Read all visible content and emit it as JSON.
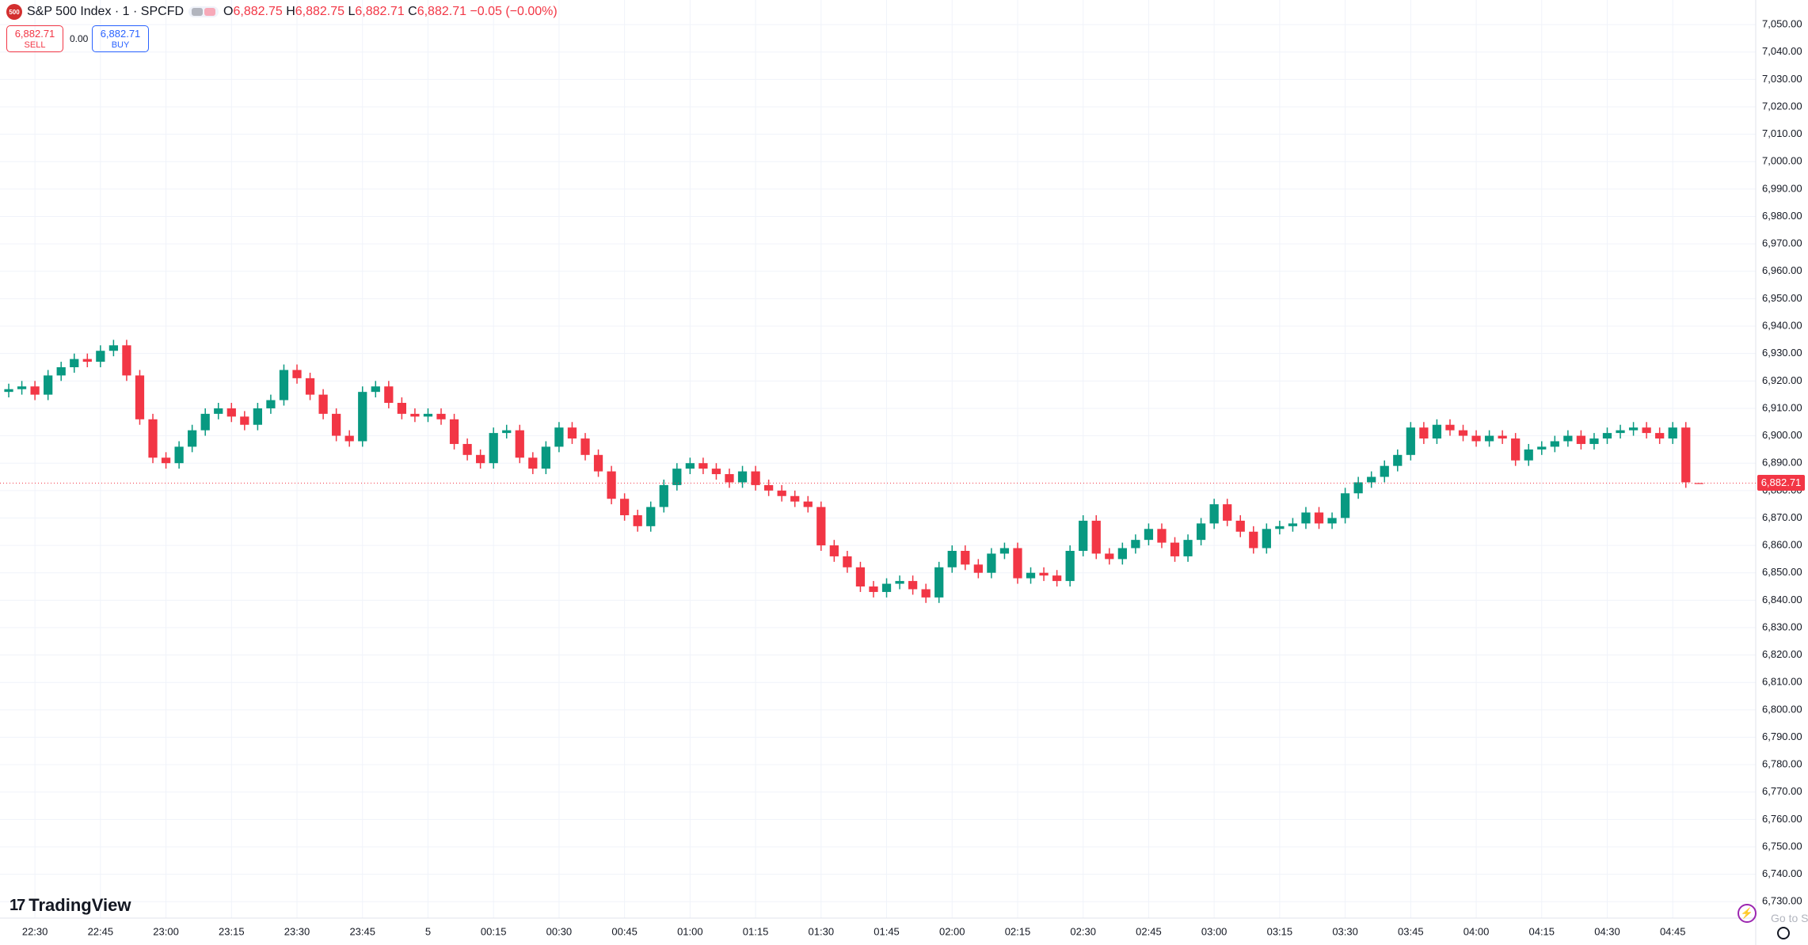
{
  "header": {
    "logo": "500",
    "symbol": "S&P 500 Index · 1 · SPCFD",
    "o_label": "O",
    "o_value": "6,882.75",
    "h_label": "H",
    "h_value": "6,882.75",
    "l_label": "L",
    "l_value": "6,882.71",
    "c_label": "C",
    "c_value": "6,882.71",
    "change": "−0.05 (−0.00%)"
  },
  "trade": {
    "sell_price": "6,882.71",
    "sell_label": "SELL",
    "spread": "0.00",
    "buy_price": "6,882.71",
    "buy_label": "BUY"
  },
  "price_tag": "6,882.71",
  "watermark": "TradingView",
  "goto": "Go to S",
  "chart_data": {
    "type": "candlestick",
    "up_color": "#089981",
    "down_color": "#f23645",
    "grid": true,
    "xlim": [
      "22:22",
      "05:04"
    ],
    "ylim": [
      6724,
      7059
    ],
    "xticks": [
      "22:30",
      "22:45",
      "23:00",
      "23:15",
      "23:30",
      "23:45",
      {
        "value": "00:00",
        "label": "5"
      },
      "00:15",
      "00:30",
      "00:45",
      "01:00",
      "01:15",
      "01:30",
      "01:45",
      "02:00",
      "02:15",
      "02:30",
      "02:45",
      "03:00",
      "03:15",
      "03:30",
      "03:45",
      "04:00",
      "04:15",
      "04:30",
      "04:45"
    ],
    "yticks": [
      {
        "value": 6730,
        "label": "6,730.00"
      },
      {
        "value": 6740,
        "label": "6,740.00"
      },
      {
        "value": 6750,
        "label": "6,750.00"
      },
      {
        "value": 6760,
        "label": "6,760.00"
      },
      {
        "value": 6770,
        "label": "6,770.00"
      },
      {
        "value": 6780,
        "label": "6,780.00"
      },
      {
        "value": 6790,
        "label": "6,790.00"
      },
      {
        "value": 6800,
        "label": "6,800.00"
      },
      {
        "value": 6810,
        "label": "6,810.00"
      },
      {
        "value": 6820,
        "label": "6,820.00"
      },
      {
        "value": 6830,
        "label": "6,830.00"
      },
      {
        "value": 6840,
        "label": "6,840.00"
      },
      {
        "value": 6850,
        "label": "6,850.00"
      },
      {
        "value": 6860,
        "label": "6,860.00"
      },
      {
        "value": 6870,
        "label": "6,870.00"
      },
      {
        "value": 6880,
        "label": "6,880.00"
      },
      {
        "value": 6890,
        "label": "6,890.00"
      },
      {
        "value": 6900,
        "label": "6,900.00"
      },
      {
        "value": 6910,
        "label": "6,910.00"
      },
      {
        "value": 6920,
        "label": "6,920.00"
      },
      {
        "value": 6930,
        "label": "6,930.00"
      },
      {
        "value": 6940,
        "label": "6,940.00"
      },
      {
        "value": 6950,
        "label": "6,950.00"
      },
      {
        "value": 6960,
        "label": "6,960.00"
      },
      {
        "value": 6970,
        "label": "6,970.00"
      },
      {
        "value": 6980,
        "label": "6,980.00"
      },
      {
        "value": 6990,
        "label": "6,990.00"
      },
      {
        "value": 7000,
        "label": "7,000.00"
      },
      {
        "value": 7010,
        "label": "7,010.00"
      },
      {
        "value": 7020,
        "label": "7,020.00"
      },
      {
        "value": 7030,
        "label": "7,030.00"
      },
      {
        "value": 7040,
        "label": "7,040.00"
      },
      {
        "value": 7050,
        "label": "7,050.00"
      }
    ],
    "x": [
      "22:24",
      "22:27",
      "22:30",
      "22:33",
      "22:36",
      "22:39",
      "22:42",
      "22:45",
      "22:48",
      "22:51",
      "22:54",
      "22:57",
      "23:00",
      "23:03",
      "23:06",
      "23:09",
      "23:12",
      "23:15",
      "23:18",
      "23:21",
      "23:24",
      "23:27",
      "23:30",
      "23:33",
      "23:36",
      "23:39",
      "23:42",
      "23:45",
      "23:48",
      "23:51",
      "23:54",
      "23:57",
      "00:00",
      "00:03",
      "00:06",
      "00:09",
      "00:12",
      "00:15",
      "00:18",
      "00:21",
      "00:24",
      "00:27",
      "00:30",
      "00:33",
      "00:36",
      "00:39",
      "00:42",
      "00:45",
      "00:48",
      "00:51",
      "00:54",
      "00:57",
      "01:00",
      "01:03",
      "01:06",
      "01:09",
      "01:12",
      "01:15",
      "01:18",
      "01:21",
      "01:24",
      "01:27",
      "01:30",
      "01:33",
      "01:36",
      "01:39",
      "01:42",
      "01:45",
      "01:48",
      "01:51",
      "01:54",
      "01:57",
      "02:00",
      "02:03",
      "02:06",
      "02:09",
      "02:12",
      "02:15",
      "02:18",
      "02:21",
      "02:24",
      "02:27",
      "02:30",
      "02:33",
      "02:36",
      "02:39",
      "02:42",
      "02:45",
      "02:48",
      "02:51",
      "02:54",
      "02:57",
      "03:00",
      "03:03",
      "03:06",
      "03:09",
      "03:12",
      "03:15",
      "03:18",
      "03:21",
      "03:24",
      "03:27",
      "03:30",
      "03:33",
      "03:36",
      "03:39",
      "03:42",
      "03:45",
      "03:48",
      "03:51",
      "03:54",
      "03:57",
      "04:00",
      "04:03",
      "04:06",
      "04:09",
      "04:12",
      "04:15",
      "04:18",
      "04:21",
      "04:24",
      "04:27",
      "04:30",
      "04:33",
      "04:36",
      "04:39",
      "04:42",
      "04:45",
      "04:48",
      "04:51"
    ],
    "open": [
      6916,
      6917,
      6918,
      6915,
      6922,
      6925,
      6928,
      6927,
      6931,
      6933,
      6922,
      6906,
      6892,
      6890,
      6896,
      6902,
      6908,
      6910,
      6907,
      6904,
      6910,
      6913,
      6924,
      6921,
      6915,
      6908,
      6900,
      6898,
      6916,
      6918,
      6912,
      6908,
      6907,
      6908,
      6906,
      6897,
      6893,
      6890,
      6901,
      6902,
      6892,
      6888,
      6896,
      6903,
      6899,
      6893,
      6887,
      6877,
      6871,
      6867,
      6874,
      6882,
      6888,
      6890,
      6888,
      6886,
      6883,
      6887,
      6882,
      6880,
      6878,
      6876,
      6874,
      6860,
      6856,
      6852,
      6845,
      6843,
      6846,
      6847,
      6844,
      6841,
      6852,
      6858,
      6853,
      6850,
      6857,
      6859,
      6848,
      6850,
      6849,
      6847,
      6858,
      6869,
      6857,
      6855,
      6859,
      6862,
      6866,
      6861,
      6856,
      6862,
      6868,
      6875,
      6869,
      6865,
      6859,
      6866,
      6867,
      6868,
      6872,
      6868,
      6870,
      6879,
      6883,
      6885,
      6889,
      6893,
      6903,
      6899,
      6904,
      6902,
      6900,
      6898,
      6900,
      6899,
      6891,
      6895,
      6896,
      6898,
      6900,
      6897,
      6899,
      6901,
      6902,
      6903,
      6901,
      6899,
      6903,
      6882.75
    ],
    "high": [
      6919,
      6920,
      6920,
      6924,
      6927,
      6930,
      6930,
      6933,
      6935,
      6935,
      6924,
      6908,
      6894,
      6898,
      6904,
      6910,
      6912,
      6912,
      6909,
      6912,
      6915,
      6926,
      6926,
      6923,
      6917,
      6910,
      6902,
      6918,
      6920,
      6920,
      6914,
      6910,
      6910,
      6910,
      6908,
      6899,
      6895,
      6903,
      6904,
      6904,
      6894,
      6898,
      6905,
      6905,
      6901,
      6895,
      6889,
      6879,
      6873,
      6876,
      6884,
      6890,
      6892,
      6892,
      6890,
      6888,
      6889,
      6889,
      6884,
      6882,
      6880,
      6878,
      6876,
      6862,
      6858,
      6854,
      6847,
      6848,
      6849,
      6849,
      6846,
      6854,
      6860,
      6860,
      6855,
      6859,
      6861,
      6861,
      6852,
      6852,
      6851,
      6860,
      6871,
      6871,
      6859,
      6861,
      6864,
      6868,
      6868,
      6863,
      6864,
      6870,
      6877,
      6877,
      6871,
      6867,
      6868,
      6869,
      6870,
      6874,
      6874,
      6872,
      6881,
      6885,
      6887,
      6891,
      6895,
      6905,
      6905,
      6906,
      6906,
      6904,
      6902,
      6902,
      6902,
      6901,
      6897,
      6898,
      6900,
      6902,
      6902,
      6901,
      6903,
      6904,
      6905,
      6905,
      6903,
      6905,
      6905,
      6882.75
    ],
    "low": [
      6914,
      6915,
      6913,
      6913,
      6920,
      6923,
      6925,
      6925,
      6929,
      6920,
      6904,
      6890,
      6888,
      6888,
      6894,
      6900,
      6906,
      6905,
      6902,
      6902,
      6908,
      6911,
      6919,
      6913,
      6906,
      6898,
      6896,
      6896,
      6914,
      6910,
      6906,
      6905,
      6905,
      6904,
      6895,
      6891,
      6888,
      6888,
      6899,
      6890,
      6886,
      6886,
      6894,
      6897,
      6891,
      6885,
      6875,
      6869,
      6865,
      6865,
      6872,
      6880,
      6886,
      6886,
      6884,
      6881,
      6881,
      6880,
      6878,
      6876,
      6874,
      6872,
      6858,
      6854,
      6850,
      6843,
      6841,
      6841,
      6844,
      6842,
      6839,
      6839,
      6850,
      6851,
      6848,
      6848,
      6855,
      6846,
      6846,
      6847,
      6845,
      6845,
      6856,
      6855,
      6853,
      6853,
      6857,
      6860,
      6859,
      6854,
      6854,
      6860,
      6866,
      6867,
      6863,
      6857,
      6857,
      6864,
      6865,
      6866,
      6866,
      6866,
      6868,
      6877,
      6881,
      6883,
      6887,
      6891,
      6897,
      6897,
      6900,
      6898,
      6896,
      6896,
      6897,
      6889,
      6889,
      6893,
      6894,
      6896,
      6895,
      6895,
      6897,
      6899,
      6900,
      6899,
      6897,
      6897,
      6881,
      6882.71
    ],
    "close": [
      6917,
      6918,
      6915,
      6922,
      6925,
      6928,
      6927,
      6931,
      6933,
      6922,
      6906,
      6892,
      6890,
      6896,
      6902,
      6908,
      6910,
      6907,
      6904,
      6910,
      6913,
      6924,
      6921,
      6915,
      6908,
      6900,
      6898,
      6916,
      6918,
      6912,
      6908,
      6907,
      6908,
      6906,
      6897,
      6893,
      6890,
      6901,
      6902,
      6892,
      6888,
      6896,
      6903,
      6899,
      6893,
      6887,
      6877,
      6871,
      6867,
      6874,
      6882,
      6888,
      6890,
      6888,
      6886,
      6883,
      6887,
      6882,
      6880,
      6878,
      6876,
      6874,
      6860,
      6856,
      6852,
      6845,
      6843,
      6846,
      6847,
      6844,
      6841,
      6852,
      6858,
      6853,
      6850,
      6857,
      6859,
      6848,
      6850,
      6849,
      6847,
      6858,
      6869,
      6857,
      6855,
      6859,
      6862,
      6866,
      6861,
      6856,
      6862,
      6868,
      6875,
      6869,
      6865,
      6859,
      6866,
      6867,
      6868,
      6872,
      6868,
      6870,
      6879,
      6883,
      6885,
      6889,
      6893,
      6903,
      6899,
      6904,
      6902,
      6900,
      6898,
      6900,
      6899,
      6891,
      6895,
      6896,
      6898,
      6900,
      6897,
      6899,
      6901,
      6902,
      6903,
      6901,
      6899,
      6903,
      6883,
      6882.71
    ]
  }
}
